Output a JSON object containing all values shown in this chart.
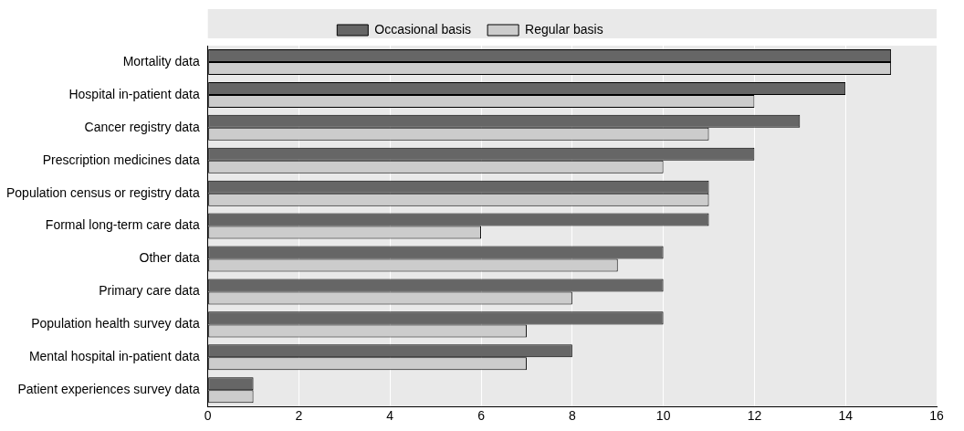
{
  "chart_data": {
    "type": "bar",
    "orientation": "horizontal",
    "categories": [
      "Mortality data",
      "Hospital in-patient data",
      "Cancer registry data",
      "Prescription medicines data",
      "Population census or registry data",
      "Formal long-term care data",
      "Other data",
      "Primary care data",
      "Population health survey data",
      "Mental hospital in-patient data",
      "Patient experiences survey data"
    ],
    "series": [
      {
        "name": "Occasional basis",
        "color": "#666666",
        "values": [
          15,
          14,
          13,
          12,
          11,
          11,
          10,
          10,
          10,
          8,
          1
        ]
      },
      {
        "name": "Regular basis",
        "color": "#cccccc",
        "values": [
          15,
          12,
          11,
          10,
          11,
          6,
          9,
          8,
          7,
          7,
          1
        ]
      }
    ],
    "xlim": [
      0,
      16
    ],
    "xticks": [
      0,
      2,
      4,
      6,
      8,
      10,
      12,
      14,
      16
    ],
    "grid": "x",
    "legend": "top"
  }
}
